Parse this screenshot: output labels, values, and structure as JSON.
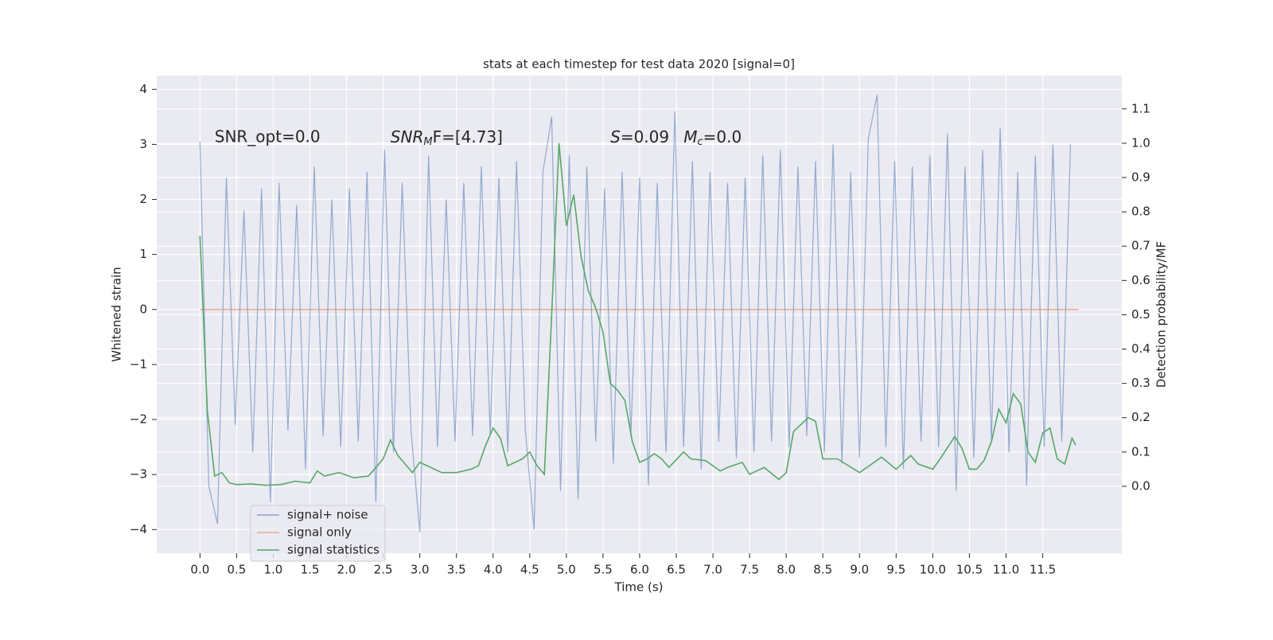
{
  "chart_data": {
    "type": "line",
    "title": "stats at each timestep for test data 2020 [signal=0]",
    "xlabel": "Time (s)",
    "ylabel": "Whitened strain",
    "y2label": "Detection probability/MF",
    "annotations": [
      "SNR_opt=0.0",
      [
        "SNR",
        "M",
        "F=[4.73]"
      ],
      [
        "S",
        "=0.09"
      ],
      [
        "M",
        "c",
        "=0.0"
      ]
    ],
    "xlim": [
      -0.59,
      12.58
    ],
    "ylim": [
      -4.43,
      4.25
    ],
    "y2lim": [
      -0.195,
      1.197
    ],
    "grid": true,
    "legend": "lower left",
    "xticks": [
      {
        "value": 0,
        "label": "0.0"
      },
      {
        "value": 0.5,
        "label": "0.5"
      },
      {
        "value": 1,
        "label": "1.0"
      },
      {
        "value": 1.5,
        "label": "1.5"
      },
      {
        "value": 2,
        "label": "2.0"
      },
      {
        "value": 2.5,
        "label": "2.5"
      },
      {
        "value": 3,
        "label": "3.0"
      },
      {
        "value": 3.5,
        "label": "3.5"
      },
      {
        "value": 4,
        "label": "4.0"
      },
      {
        "value": 4.5,
        "label": "4.5"
      },
      {
        "value": 5,
        "label": "5.0"
      },
      {
        "value": 5.5,
        "label": "5.5"
      },
      {
        "value": 6,
        "label": "6.0"
      },
      {
        "value": 6.5,
        "label": "6.5"
      },
      {
        "value": 7,
        "label": "7.0"
      },
      {
        "value": 7.5,
        "label": "7.5"
      },
      {
        "value": 8,
        "label": "8.0"
      },
      {
        "value": 8.5,
        "label": "8.5"
      },
      {
        "value": 9,
        "label": "9.0"
      },
      {
        "value": 9.5,
        "label": "9.5"
      },
      {
        "value": 10,
        "label": "10.0"
      },
      {
        "value": 10.5,
        "label": "10.5"
      },
      {
        "value": 11,
        "label": "11.0"
      },
      {
        "value": 11.5,
        "label": "11.5"
      }
    ],
    "yticks": [
      {
        "value": -4,
        "label": "−4"
      },
      {
        "value": -3,
        "label": "−3"
      },
      {
        "value": -2,
        "label": "−2"
      },
      {
        "value": -1,
        "label": "−1"
      },
      0,
      1,
      2,
      3,
      4
    ],
    "y2ticks": [
      {
        "value": 0,
        "label": "0.0"
      },
      {
        "value": 0.1,
        "label": "0.1"
      },
      {
        "value": 0.2,
        "label": "0.2"
      },
      {
        "value": 0.3,
        "label": "0.3"
      },
      {
        "value": 0.4,
        "label": "0.4"
      },
      {
        "value": 0.5,
        "label": "0.5"
      },
      {
        "value": 0.6,
        "label": "0.6"
      },
      {
        "value": 0.7,
        "label": "0.7"
      },
      {
        "value": 0.8,
        "label": "0.8"
      },
      {
        "value": 0.9,
        "label": "0.9"
      },
      {
        "value": 1,
        "label": "1.0"
      },
      {
        "value": 1.1,
        "label": "1.1"
      }
    ],
    "series": [
      {
        "name": "signal+ noise",
        "color": "#4c72b0",
        "x": [
          0,
          0.12,
          0.24,
          0.36,
          0.48,
          0.6,
          0.72,
          0.84,
          0.96,
          1.08,
          1.2,
          1.32,
          1.44,
          1.56,
          1.68,
          1.8,
          1.92,
          2.04,
          2.16,
          2.28,
          2.4,
          2.52,
          2.64,
          2.76,
          2.88,
          3.0,
          3.12,
          3.24,
          3.36,
          3.48,
          3.6,
          3.72,
          3.84,
          3.96,
          4.08,
          4.2,
          4.32,
          4.44,
          4.56,
          4.68,
          4.8,
          4.92,
          5.04,
          5.16,
          5.28,
          5.4,
          5.52,
          5.64,
          5.76,
          5.88,
          6.0,
          6.12,
          6.24,
          6.36,
          6.48,
          6.6,
          6.72,
          6.84,
          6.96,
          7.08,
          7.2,
          7.32,
          7.44,
          7.56,
          7.68,
          7.8,
          7.92,
          8.04,
          8.16,
          8.28,
          8.4,
          8.52,
          8.64,
          8.76,
          8.88,
          9.0,
          9.12,
          9.24,
          9.36,
          9.48,
          9.6,
          9.72,
          9.84,
          9.96,
          10.08,
          10.2,
          10.32,
          10.44,
          10.56,
          10.68,
          10.8,
          10.92,
          11.04,
          11.16,
          11.28,
          11.4,
          11.52,
          11.64,
          11.76,
          11.88
        ],
        "values": [
          3.05,
          -3.2,
          -3.9,
          2.4,
          -2.1,
          1.8,
          -2.6,
          2.2,
          -3.5,
          2.3,
          -2.2,
          1.9,
          -2.9,
          2.6,
          -2.3,
          2.0,
          -2.5,
          2.2,
          -2.4,
          2.5,
          -3.5,
          2.9,
          -2.6,
          2.3,
          -2.2,
          -4.05,
          2.8,
          -2.5,
          2.0,
          -2.4,
          2.3,
          -2.3,
          2.6,
          -2.3,
          2.4,
          -2.6,
          2.7,
          -2.2,
          -4.0,
          2.5,
          3.5,
          -3.3,
          2.8,
          -3.45,
          2.6,
          -2.4,
          2.2,
          -2.8,
          2.5,
          -2.3,
          2.4,
          -3.2,
          2.3,
          -2.6,
          3.6,
          -2.5,
          2.7,
          -2.9,
          2.5,
          -2.4,
          2.3,
          -2.7,
          2.4,
          -2.6,
          2.8,
          -2.4,
          2.9,
          -2.5,
          2.6,
          -2.3,
          2.7,
          -2.6,
          3.0,
          -2.8,
          2.5,
          -2.7,
          3.1,
          3.9,
          -2.5,
          2.7,
          -2.9,
          2.6,
          -2.4,
          2.8,
          -2.5,
          3.2,
          -3.3,
          2.6,
          -2.7,
          2.9,
          -2.4,
          3.3,
          -2.6,
          2.5,
          -3.2,
          2.8,
          -2.5,
          3.0,
          -2.4,
          3.0
        ]
      },
      {
        "name": "signal only",
        "color": "#dd8452",
        "x": [
          0,
          11.99
        ],
        "values": [
          0,
          0
        ]
      },
      {
        "name": "signal statistics",
        "color": "#55a868",
        "axis": "y2",
        "x": [
          0.0,
          0.1,
          0.2,
          0.3,
          0.4,
          0.5,
          0.7,
          0.9,
          1.1,
          1.3,
          1.5,
          1.6,
          1.7,
          1.9,
          2.1,
          2.3,
          2.5,
          2.6,
          2.7,
          2.9,
          3.0,
          3.1,
          3.3,
          3.5,
          3.7,
          3.8,
          3.9,
          4.0,
          4.1,
          4.2,
          4.4,
          4.5,
          4.6,
          4.7,
          4.8,
          4.9,
          5.0,
          5.1,
          5.2,
          5.3,
          5.4,
          5.5,
          5.6,
          5.7,
          5.8,
          5.9,
          6.0,
          6.1,
          6.2,
          6.3,
          6.4,
          6.6,
          6.7,
          6.9,
          7.1,
          7.2,
          7.4,
          7.5,
          7.7,
          7.9,
          8.0,
          8.1,
          8.2,
          8.3,
          8.4,
          8.5,
          8.7,
          9.0,
          9.2,
          9.3,
          9.5,
          9.7,
          9.8,
          10.0,
          10.1,
          10.3,
          10.4,
          10.5,
          10.6,
          10.7,
          10.8,
          10.9,
          11.0,
          11.1,
          11.2,
          11.3,
          11.4,
          11.5,
          11.6,
          11.7,
          11.8,
          11.9,
          11.95
        ],
        "values": [
          0.73,
          0.22,
          0.03,
          0.04,
          0.01,
          0.005,
          0.007,
          0.003,
          0.005,
          0.015,
          0.01,
          0.045,
          0.03,
          0.04,
          0.025,
          0.03,
          0.08,
          0.135,
          0.09,
          0.04,
          0.07,
          0.06,
          0.04,
          0.04,
          0.05,
          0.06,
          0.12,
          0.17,
          0.14,
          0.06,
          0.08,
          0.1,
          0.06,
          0.035,
          0.5,
          1.0,
          0.76,
          0.85,
          0.67,
          0.57,
          0.52,
          0.45,
          0.3,
          0.28,
          0.25,
          0.13,
          0.07,
          0.08,
          0.095,
          0.08,
          0.055,
          0.1,
          0.08,
          0.075,
          0.045,
          0.055,
          0.07,
          0.035,
          0.055,
          0.02,
          0.04,
          0.16,
          0.18,
          0.2,
          0.19,
          0.08,
          0.08,
          0.04,
          0.07,
          0.085,
          0.05,
          0.09,
          0.065,
          0.05,
          0.08,
          0.145,
          0.11,
          0.05,
          0.05,
          0.075,
          0.13,
          0.225,
          0.185,
          0.27,
          0.24,
          0.1,
          0.07,
          0.155,
          0.17,
          0.08,
          0.065,
          0.14,
          0.12
        ]
      }
    ]
  }
}
